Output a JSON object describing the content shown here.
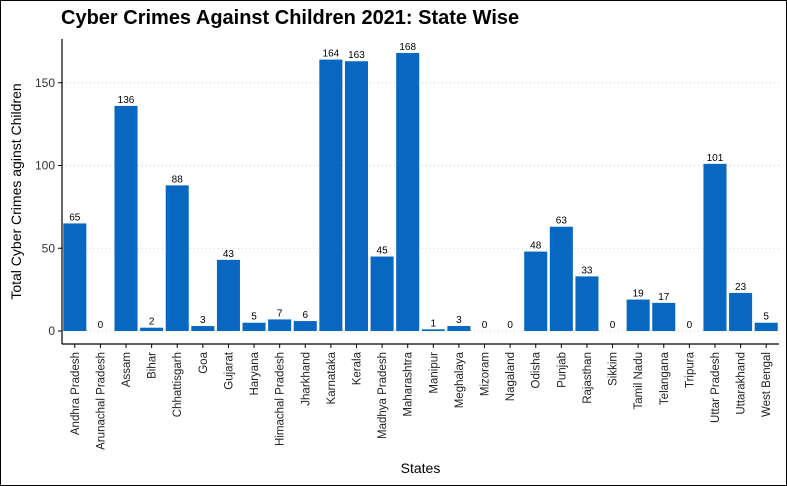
{
  "chart_data": {
    "type": "bar",
    "title": "Cyber Crimes Against Children 2021: State Wise",
    "xlabel": "States",
    "ylabel": "Total Cyber Crimes aginst Children",
    "ylim": [
      0,
      175
    ],
    "yticks": [
      0,
      50,
      100,
      150
    ],
    "grid": "horizontal-dotted",
    "bar_color": "#0868C1",
    "categories": [
      "Andhra Pradesh",
      "Arunachal Pradesh",
      "Assam",
      "Bihar",
      "Chhattisgarh",
      "Goa",
      "Gujarat",
      "Haryana",
      "Himachal Pradesh",
      "Jharkhand",
      "Karnataka",
      "Kerala",
      "Madhya Pradesh",
      "Maharashtra",
      "Manipur",
      "Meghalaya",
      "Mizoram",
      "Nagaland",
      "Odisha",
      "Punjab",
      "Rajasthan",
      "Sikkim",
      "Tamil Nadu",
      "Telangana",
      "Tripura",
      "Uttar Pradesh",
      "Uttarakhand",
      "West Bengal"
    ],
    "values": [
      65,
      0,
      136,
      2,
      88,
      3,
      43,
      5,
      7,
      6,
      164,
      163,
      45,
      168,
      1,
      3,
      0,
      0,
      48,
      63,
      33,
      0,
      19,
      17,
      0,
      101,
      23,
      5
    ]
  }
}
